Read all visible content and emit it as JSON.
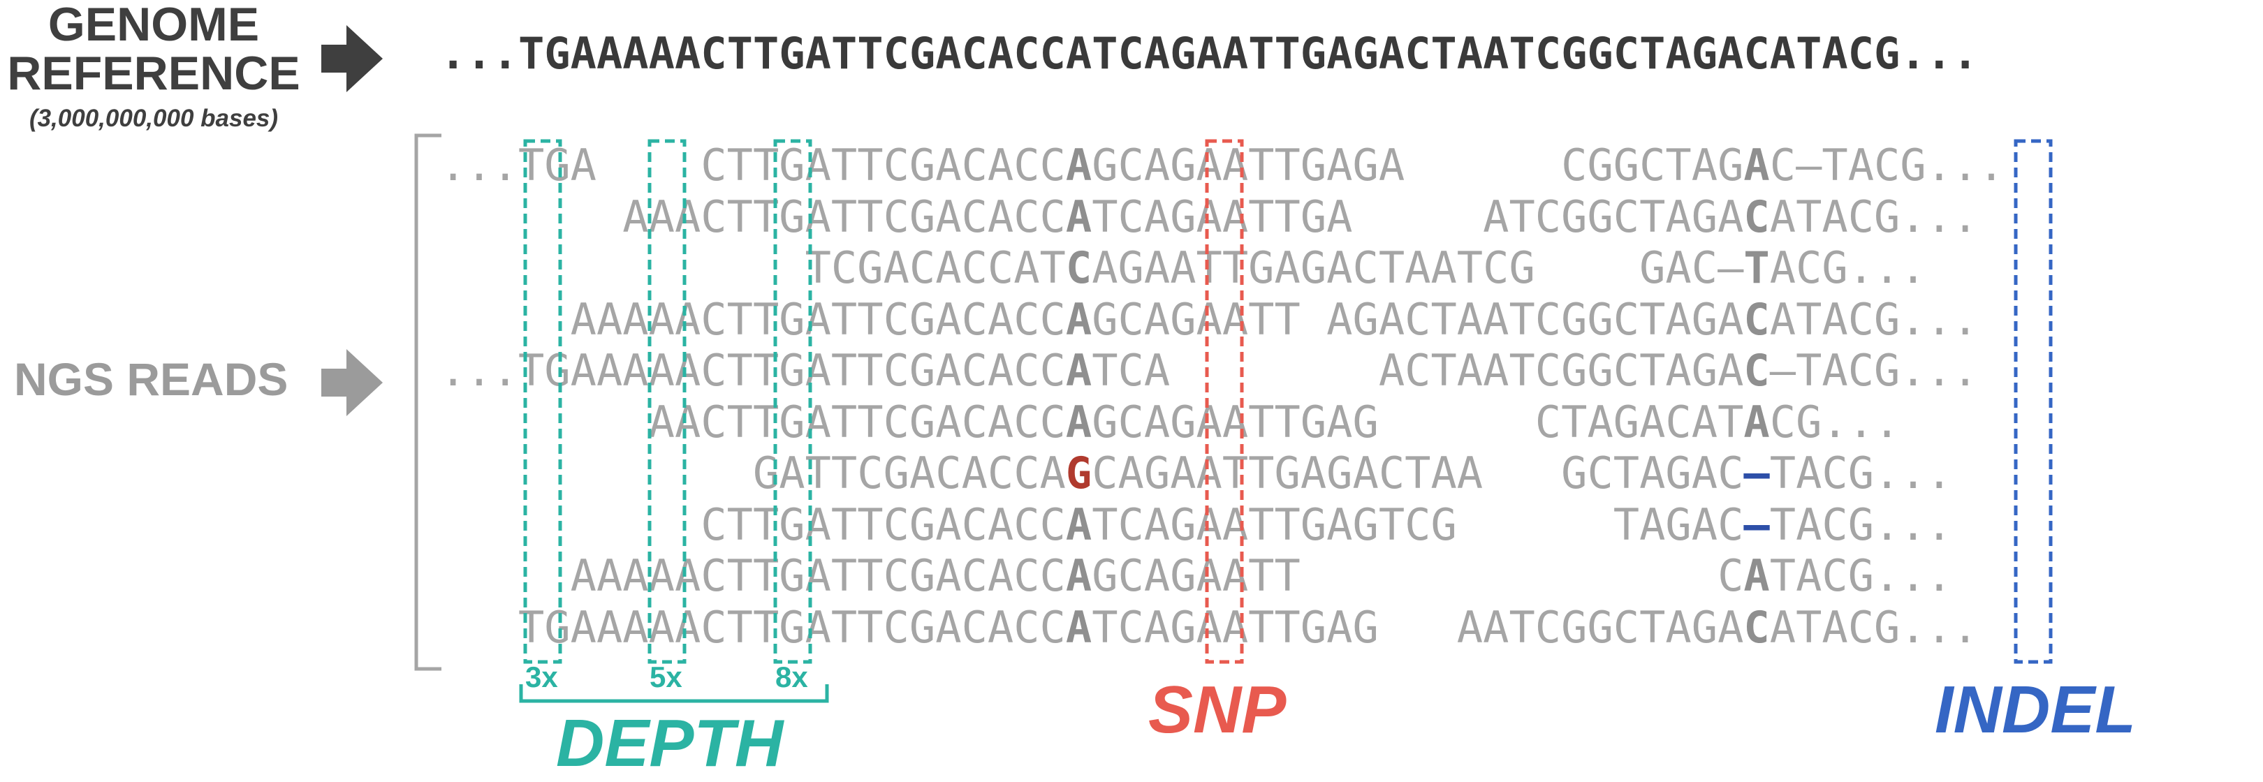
{
  "genome_reference": {
    "title_line1": "GENOME",
    "title_line2": "REFERENCE",
    "subtitle": "(3,000,000,000 bases)",
    "sequence": "...TGAAAAACTTGATTCGACACCATCAGAATTGAGACTAATCGGCTAGACATACG..."
  },
  "ngs_reads": {
    "title": "NGS READS",
    "rows": [
      "...TGA    CTTGATTCGACACCAGCAGAATTGAGA      CGGCTAGAC–TACG...",
      "       AAACTTGATTCGACACCATCAGAATTGA     ATCGGCTAGACATACG...",
      "              TCGACACCATCAGAATTGAGACTAATCG    GAC–TACG...",
      "     AAAAACTTGATTCGACACCAGCAGAATT AGACTAATCGGCTAGACATACG...",
      "...TGAAAAACTTGATTCGACACCATCA        ACTAATCGGCTAGAC–TACG...",
      "        AACTTGATTCGACACCAGCAGAATTGAG      CTAGACATACG...",
      "            GATTCGACACCAGCAGAATTGAGACTAA   GCTAGAC–TACG...",
      "          CTTGATTCGACACCATCAGAATTGAGTCG      TAGAC–TACG...",
      "     AAAAACTTGATTCGACACCAGCAGAATT                CATACG...",
      "   TGAAAAACTTGATTCGACACCATCAGAATTGAG   AATCGGCTAGACATACG..."
    ]
  },
  "depth": {
    "label": "DEPTH",
    "counts": [
      "3x",
      "5x",
      "8x"
    ],
    "color": "#2bb3a3"
  },
  "snp": {
    "label": "SNP",
    "color": "#e85a4f"
  },
  "indel": {
    "label": "INDEL",
    "color": "#3566c4"
  },
  "colors": {
    "title_dark": "#3f3f3f",
    "reads_gray": "#a5a5a5",
    "arrow_dark": "#3f3f3f",
    "arrow_light": "#9b9b9b"
  }
}
